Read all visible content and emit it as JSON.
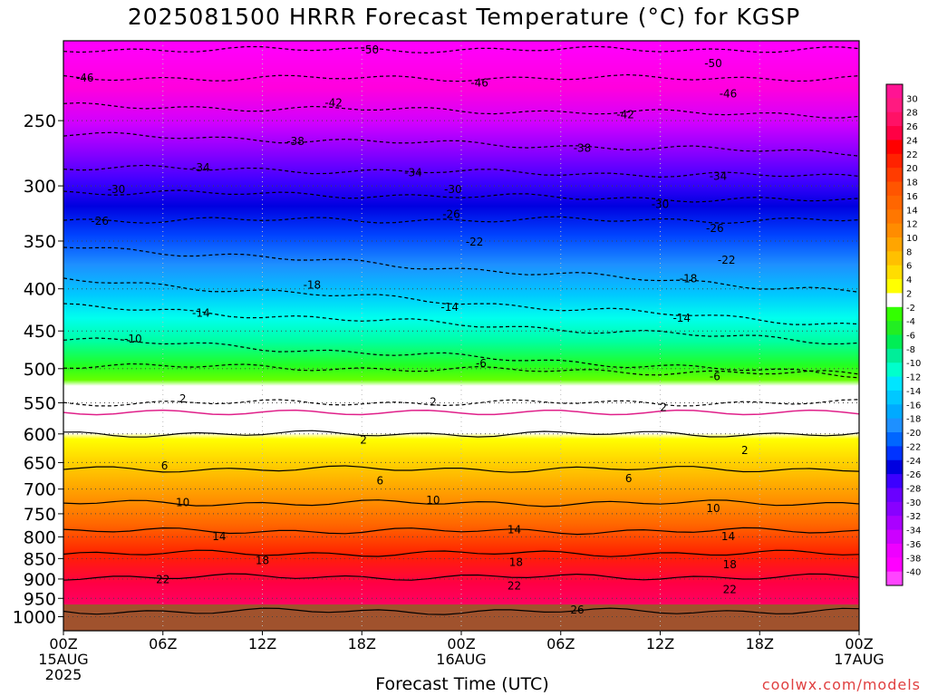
{
  "title": "2025081500 HRRR Forecast Temperature (°C) for KGSP",
  "credit": "coolwx.com/models",
  "chart_data": {
    "type": "heatmap",
    "title": "2025081500 HRRR Forecast Temperature (°C) for KGSP",
    "xlabel": "Forecast Time (UTC)",
    "ylabel": "",
    "x_range_hours": [
      0,
      48
    ],
    "y_range_hPa": [
      1040,
      200
    ],
    "y_scale": "log",
    "y_ticks": [
      "250",
      "300",
      "350",
      "400",
      "450",
      "500",
      "550",
      "600",
      "650",
      "700",
      "750",
      "800",
      "850",
      "900",
      "950",
      "1000"
    ],
    "x_ticks": [
      {
        "hour": 0,
        "lines": [
          "00Z",
          "15AUG",
          "2025"
        ]
      },
      {
        "hour": 6,
        "lines": [
          "06Z"
        ]
      },
      {
        "hour": 12,
        "lines": [
          "12Z"
        ]
      },
      {
        "hour": 18,
        "lines": [
          "18Z"
        ]
      },
      {
        "hour": 24,
        "lines": [
          "00Z",
          "16AUG"
        ]
      },
      {
        "hour": 30,
        "lines": [
          "06Z"
        ]
      },
      {
        "hour": 36,
        "lines": [
          "12Z"
        ]
      },
      {
        "hour": 42,
        "lines": [
          "18Z"
        ]
      },
      {
        "hour": 48,
        "lines": [
          "00Z",
          "17AUG"
        ]
      }
    ],
    "grid": true,
    "colorbar": {
      "position": "right",
      "labels": [
        "30",
        "28",
        "26",
        "24",
        "22",
        "20",
        "18",
        "16",
        "14",
        "12",
        "10",
        "8",
        "6",
        "4",
        "2",
        "-2",
        "-4",
        "-6",
        "-8",
        "-10",
        "-12",
        "-14",
        "-16",
        "-18",
        "-20",
        "-22",
        "-24",
        "-26",
        "-28",
        "-30",
        "-32",
        "-34",
        "-36",
        "-38",
        "-40"
      ]
    },
    "contours": [
      {
        "temp": 26,
        "p_hPa": 985,
        "slope": 0
      },
      {
        "temp": 22,
        "p_hPa": 895,
        "slope": 0
      },
      {
        "temp": 18,
        "p_hPa": 838,
        "slope": 0
      },
      {
        "temp": 14,
        "p_hPa": 787,
        "slope": 0
      },
      {
        "temp": 10,
        "p_hPa": 728,
        "slope": 0
      },
      {
        "temp": 6,
        "p_hPa": 662,
        "slope": 0
      },
      {
        "temp": 2,
        "p_hPa": 600,
        "slope": 0
      },
      {
        "temp": 2,
        "p_hPa": 550,
        "slope": 0
      },
      {
        "temp": -6,
        "p_hPa": 495,
        "slope": 1
      },
      {
        "temp": -10,
        "p_hPa": 460,
        "slope": 4
      },
      {
        "temp": -14,
        "p_hPa": 420,
        "slope": 4
      },
      {
        "temp": -18,
        "p_hPa": 390,
        "slope": 5
      },
      {
        "temp": -22,
        "p_hPa": 355,
        "slope": 5
      },
      {
        "temp": -26,
        "p_hPa": 330,
        "slope": 0
      },
      {
        "temp": -30,
        "p_hPa": 305,
        "slope": 1
      },
      {
        "temp": -34,
        "p_hPa": 285,
        "slope": 1
      },
      {
        "temp": -38,
        "p_hPa": 260,
        "slope": 2
      },
      {
        "temp": -42,
        "p_hPa": 240,
        "slope": 1
      },
      {
        "temp": -46,
        "p_hPa": 222,
        "slope": 0
      },
      {
        "temp": -50,
        "p_hPa": 205,
        "slope": 0
      }
    ],
    "contour_labels": [
      {
        "text": "-50",
        "hour": 18.5,
        "p_hPa": 205
      },
      {
        "text": "-50",
        "hour": 39.2,
        "p_hPa": 213
      },
      {
        "text": "-46",
        "hour": 1.3,
        "p_hPa": 222
      },
      {
        "text": "-46",
        "hour": 25.1,
        "p_hPa": 225
      },
      {
        "text": "-46",
        "hour": 40.1,
        "p_hPa": 232
      },
      {
        "text": "-42",
        "hour": 16.3,
        "p_hPa": 238
      },
      {
        "text": "-42",
        "hour": 33.9,
        "p_hPa": 246
      },
      {
        "text": "-38",
        "hour": 14.0,
        "p_hPa": 265
      },
      {
        "text": "-38",
        "hour": 31.3,
        "p_hPa": 270
      },
      {
        "text": "-34",
        "hour": 8.3,
        "p_hPa": 285
      },
      {
        "text": "-34",
        "hour": 21.1,
        "p_hPa": 289
      },
      {
        "text": "-34",
        "hour": 39.5,
        "p_hPa": 292
      },
      {
        "text": "-30",
        "hour": 3.2,
        "p_hPa": 303
      },
      {
        "text": "-30",
        "hour": 23.5,
        "p_hPa": 303
      },
      {
        "text": "-30",
        "hour": 36.0,
        "p_hPa": 316
      },
      {
        "text": "-26",
        "hour": 2.2,
        "p_hPa": 331
      },
      {
        "text": "-26",
        "hour": 23.4,
        "p_hPa": 325
      },
      {
        "text": "-26",
        "hour": 39.3,
        "p_hPa": 338
      },
      {
        "text": "-22",
        "hour": 24.8,
        "p_hPa": 351
      },
      {
        "text": "-22",
        "hour": 40.0,
        "p_hPa": 369
      },
      {
        "text": "-18",
        "hour": 15.0,
        "p_hPa": 396
      },
      {
        "text": "-18",
        "hour": 37.7,
        "p_hPa": 389
      },
      {
        "text": "-14",
        "hour": 8.3,
        "p_hPa": 428
      },
      {
        "text": "-14",
        "hour": 23.3,
        "p_hPa": 421
      },
      {
        "text": "-14",
        "hour": 37.3,
        "p_hPa": 434
      },
      {
        "text": "-10",
        "hour": 4.2,
        "p_hPa": 460
      },
      {
        "text": "-6",
        "hour": 25.2,
        "p_hPa": 493
      },
      {
        "text": "-6",
        "hour": 39.3,
        "p_hPa": 511
      },
      {
        "text": "2",
        "hour": 7.2,
        "p_hPa": 544
      },
      {
        "text": "2",
        "hour": 22.3,
        "p_hPa": 549
      },
      {
        "text": "2",
        "hour": 36.2,
        "p_hPa": 557
      },
      {
        "text": "2",
        "hour": 18.1,
        "p_hPa": 610
      },
      {
        "text": "2",
        "hour": 41.1,
        "p_hPa": 628
      },
      {
        "text": "6",
        "hour": 6.1,
        "p_hPa": 656
      },
      {
        "text": "6",
        "hour": 19.1,
        "p_hPa": 684
      },
      {
        "text": "6",
        "hour": 34.1,
        "p_hPa": 680
      },
      {
        "text": "10",
        "hour": 7.2,
        "p_hPa": 727
      },
      {
        "text": "10",
        "hour": 22.3,
        "p_hPa": 722
      },
      {
        "text": "10",
        "hour": 39.2,
        "p_hPa": 739
      },
      {
        "text": "14",
        "hour": 9.4,
        "p_hPa": 799
      },
      {
        "text": "14",
        "hour": 27.2,
        "p_hPa": 784
      },
      {
        "text": "14",
        "hour": 40.1,
        "p_hPa": 799
      },
      {
        "text": "18",
        "hour": 12.0,
        "p_hPa": 855
      },
      {
        "text": "18",
        "hour": 27.3,
        "p_hPa": 859
      },
      {
        "text": "18",
        "hour": 40.2,
        "p_hPa": 865
      },
      {
        "text": "22",
        "hour": 6.0,
        "p_hPa": 901
      },
      {
        "text": "22",
        "hour": 27.2,
        "p_hPa": 918
      },
      {
        "text": "22",
        "hour": 40.2,
        "p_hPa": 927
      },
      {
        "text": "26",
        "hour": 31.0,
        "p_hPa": 981
      }
    ]
  }
}
